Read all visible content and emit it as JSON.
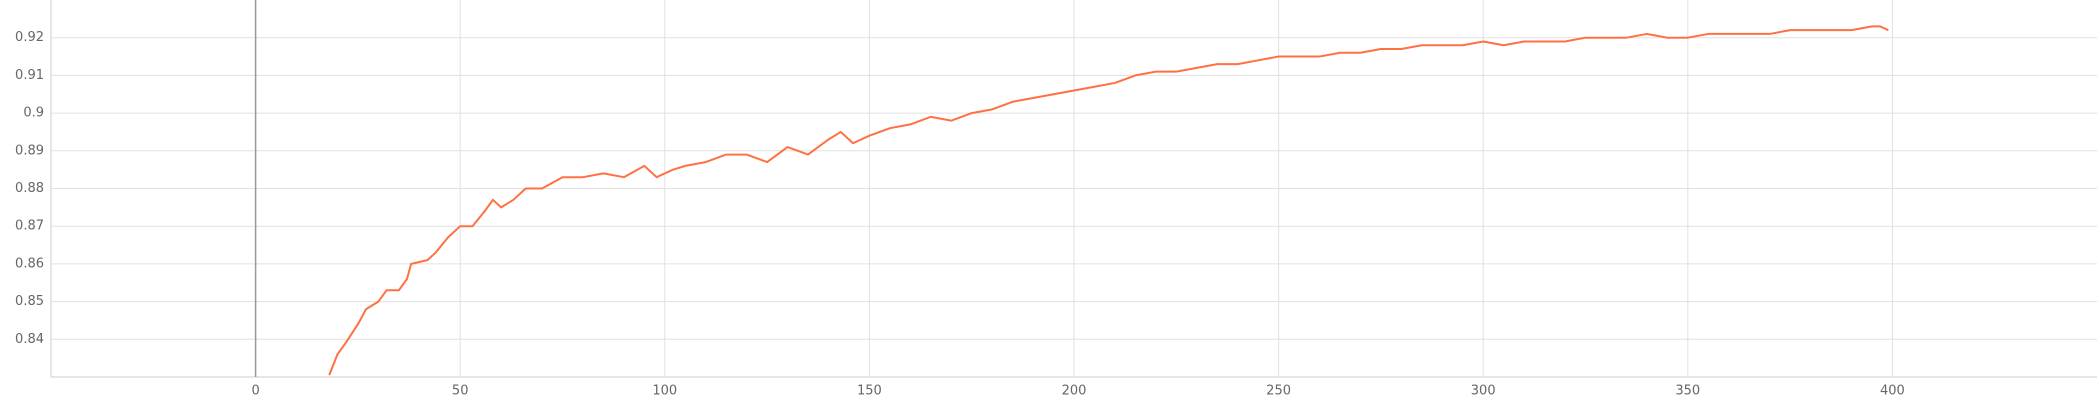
{
  "chart_data": {
    "type": "line",
    "x": [
      18,
      20,
      22,
      25,
      27,
      30,
      32,
      35,
      37,
      38,
      42,
      44,
      47,
      50,
      53,
      56,
      58,
      60,
      63,
      66,
      70,
      75,
      80,
      85,
      90,
      95,
      98,
      102,
      105,
      110,
      115,
      120,
      125,
      130,
      135,
      140,
      143,
      146,
      150,
      155,
      160,
      165,
      170,
      175,
      180,
      185,
      190,
      195,
      200,
      205,
      210,
      215,
      220,
      225,
      230,
      235,
      240,
      245,
      250,
      255,
      260,
      265,
      270,
      275,
      280,
      285,
      290,
      295,
      300,
      305,
      310,
      315,
      320,
      325,
      330,
      335,
      340,
      345,
      350,
      355,
      360,
      365,
      370,
      375,
      380,
      385,
      390,
      395,
      397,
      399
    ],
    "series": [
      {
        "color": "#ff7043",
        "values": [
          0.8305,
          0.836,
          0.839,
          0.844,
          0.848,
          0.85,
          0.853,
          0.853,
          0.856,
          0.86,
          0.861,
          0.863,
          0.867,
          0.87,
          0.87,
          0.874,
          0.877,
          0.875,
          0.877,
          0.88,
          0.88,
          0.883,
          0.883,
          0.884,
          0.883,
          0.886,
          0.883,
          0.885,
          0.886,
          0.887,
          0.889,
          0.889,
          0.887,
          0.891,
          0.889,
          0.893,
          0.895,
          0.892,
          0.894,
          0.896,
          0.897,
          0.899,
          0.898,
          0.9,
          0.901,
          0.903,
          0.904,
          0.905,
          0.906,
          0.907,
          0.908,
          0.91,
          0.911,
          0.911,
          0.912,
          0.913,
          0.913,
          0.914,
          0.915,
          0.915,
          0.915,
          0.916,
          0.916,
          0.917,
          0.917,
          0.918,
          0.918,
          0.918,
          0.919,
          0.918,
          0.919,
          0.919,
          0.919,
          0.92,
          0.92,
          0.92,
          0.921,
          0.92,
          0.92,
          0.921,
          0.921,
          0.921,
          0.921,
          0.922,
          0.922,
          0.922,
          0.922,
          0.923,
          0.923,
          0.922
        ]
      }
    ],
    "xlim": [
      -50,
      450
    ],
    "xticks": [
      0,
      50,
      100,
      150,
      200,
      250,
      300,
      350,
      400
    ],
    "ylim": [
      0.83,
      0.93
    ],
    "yticks": [
      0.84,
      0.85,
      0.86,
      0.87,
      0.88,
      0.89,
      0.9,
      0.91,
      0.92
    ],
    "grid": true
  }
}
